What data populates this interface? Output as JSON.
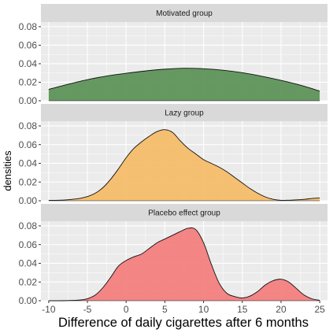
{
  "chart_data": {
    "type": "area",
    "chart_kind": "faceted-density",
    "xlabel": "Difference of daily cigarettes after 6 months",
    "ylabel": "densities",
    "xlim": [
      -11,
      26
    ],
    "ylim": [
      0,
      0.085
    ],
    "x_ticks": [
      -10,
      -5,
      0,
      5,
      10,
      15,
      20,
      25
    ],
    "y_ticks": [
      0.0,
      0.02,
      0.04,
      0.06,
      0.08
    ],
    "y_tick_labels": [
      "0.00",
      "0.02",
      "0.04",
      "0.06",
      "0.08"
    ],
    "grid": true,
    "panel_background": "#ebebeb",
    "strip_background": "#d9d9d9",
    "grid_color": "#ffffff",
    "series": [
      {
        "name": "Motivated group",
        "fill": "#5e9458",
        "line": "#111111",
        "x": [
          -10,
          -7.5,
          -5,
          -2.5,
          0,
          2.5,
          5,
          7.5,
          10,
          12.5,
          15,
          17.5,
          20,
          22.5,
          25
        ],
        "y": [
          0.0123,
          0.0178,
          0.0228,
          0.0267,
          0.0297,
          0.0322,
          0.0341,
          0.0351,
          0.0346,
          0.033,
          0.0303,
          0.0265,
          0.022,
          0.0168,
          0.0105
        ]
      },
      {
        "name": "Lazy group",
        "fill": "#f5bd6a",
        "line": "#111111",
        "x": [
          -10,
          -8,
          -6,
          -5,
          -4,
          -3,
          -2,
          -1,
          0,
          1,
          2,
          3,
          4,
          5,
          6,
          7,
          8,
          9,
          10,
          11,
          12,
          13,
          14,
          15,
          16,
          17,
          18,
          19,
          20,
          21,
          22,
          23,
          24,
          25
        ],
        "y": [
          0.0004,
          0.0008,
          0.0025,
          0.0045,
          0.008,
          0.014,
          0.023,
          0.034,
          0.046,
          0.056,
          0.063,
          0.069,
          0.074,
          0.076,
          0.073,
          0.064,
          0.056,
          0.05,
          0.044,
          0.04,
          0.036,
          0.031,
          0.025,
          0.019,
          0.013,
          0.008,
          0.004,
          0.0015,
          0.0005,
          0.0006,
          0.001,
          0.0015,
          0.0025,
          0.003
        ]
      },
      {
        "name": "Placebo effect group",
        "fill": "#f38080",
        "line": "#111111",
        "x": [
          -10,
          -8,
          -6,
          -5,
          -4,
          -3,
          -2,
          -1,
          0,
          1,
          2,
          3,
          4,
          5,
          6,
          7,
          8,
          9,
          10,
          11,
          12,
          13,
          14,
          15,
          16,
          17,
          18,
          19,
          20,
          21,
          22,
          23,
          24,
          25
        ],
        "y": [
          0.0,
          0.0001,
          0.0008,
          0.0022,
          0.006,
          0.014,
          0.025,
          0.037,
          0.043,
          0.047,
          0.05,
          0.056,
          0.062,
          0.066,
          0.07,
          0.074,
          0.0775,
          0.076,
          0.062,
          0.039,
          0.019,
          0.008,
          0.0045,
          0.003,
          0.005,
          0.01,
          0.017,
          0.0215,
          0.023,
          0.02,
          0.013,
          0.006,
          0.002,
          0.0005
        ]
      }
    ]
  }
}
